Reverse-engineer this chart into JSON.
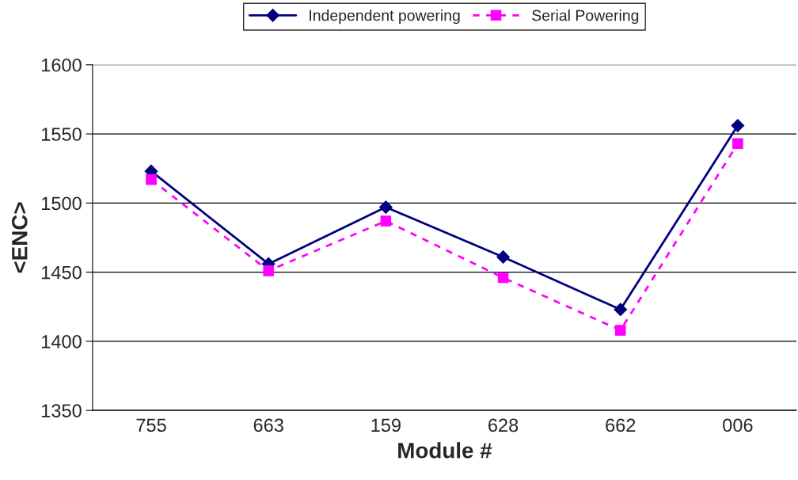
{
  "chart_data": {
    "type": "line",
    "xlabel": "Module #",
    "ylabel": "<ENC>",
    "categories": [
      "755",
      "663",
      "159",
      "628",
      "662",
      "006"
    ],
    "series": [
      {
        "name": "Independent powering",
        "color": "#000080",
        "marker": "diamond",
        "line_style": "solid",
        "values": [
          1523,
          1456,
          1497,
          1461,
          1423,
          1556
        ]
      },
      {
        "name": "Serial Powering",
        "color": "#ff00ff",
        "marker": "square",
        "line_style": "dashed",
        "values": [
          1517,
          1451,
          1487,
          1446,
          1408,
          1543
        ]
      }
    ],
    "ylim": [
      1350,
      1600
    ],
    "yticks": [
      1350,
      1400,
      1450,
      1500,
      1550,
      1600
    ],
    "grid": "y",
    "legend": "top"
  }
}
